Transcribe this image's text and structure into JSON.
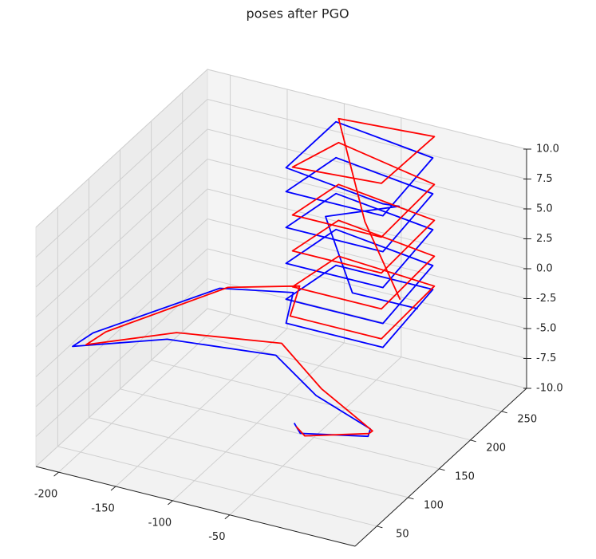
{
  "chart_data": {
    "type": "line3d",
    "title": "poses after PGO",
    "xlim": [
      -220,
      60
    ],
    "ylim": [
      15,
      290
    ],
    "zlim": [
      -10,
      10
    ],
    "xticks": [
      -200,
      -150,
      -100,
      -50
    ],
    "yticks": [
      50,
      100,
      150,
      200,
      250
    ],
    "zticks": [
      {
        "value": -10,
        "label": "-10.0"
      },
      {
        "value": -7.5,
        "label": "-7.5"
      },
      {
        "value": -5,
        "label": "-5.0"
      },
      {
        "value": -2.5,
        "label": "-2.5"
      },
      {
        "value": 0,
        "label": "0.0"
      },
      {
        "value": 2.5,
        "label": "2.5"
      },
      {
        "value": 5,
        "label": "5.0"
      },
      {
        "value": 7.5,
        "label": "7.5"
      },
      {
        "value": 10,
        "label": "10.0"
      }
    ],
    "grid": true,
    "series": [
      {
        "color": "#0000ff",
        "x": [
          -52,
          -40,
          9,
          5,
          -53,
          -102,
          -171,
          -213,
          -200,
          -155,
          -119,
          -110,
          -25,
          -25,
          -110,
          -110,
          -25,
          -25,
          -110,
          -110,
          -25,
          -25,
          -110,
          -110,
          -25,
          -25,
          -110,
          -110,
          -25,
          -25,
          -110,
          -110,
          -25,
          -30,
          -100,
          -60,
          -30
        ],
        "y": [
          122,
          110,
          129,
          140,
          159,
          184,
          136,
          61,
          70,
          191,
          243,
          215,
          215,
          295,
          295,
          215,
          215,
          295,
          295,
          215,
          215,
          295,
          295,
          215,
          215,
          295,
          295,
          215,
          215,
          295,
          295,
          215,
          215,
          250,
          260,
          230,
          280
        ],
        "z": [
          -7.5,
          -7.5,
          -7.5,
          -7.5,
          -7,
          -6,
          -4,
          -2,
          -1,
          -2,
          -4,
          -5,
          -5,
          -4,
          -4,
          -3,
          -3,
          -2,
          -1,
          0,
          0,
          1,
          2,
          3,
          3,
          4,
          5,
          6,
          6,
          7,
          8,
          8,
          7,
          5,
          2,
          -2,
          -5
        ]
      },
      {
        "color": "#ff0000",
        "x": [
          -48,
          -35,
          12,
          8,
          -50,
          -98,
          -165,
          -205,
          -192,
          -150,
          -115,
          -108,
          -28,
          -22,
          -106,
          -106,
          -28,
          -22,
          -106,
          -106,
          -28,
          -22,
          -106,
          -106,
          -28,
          -22,
          -106,
          -106,
          -28,
          -22,
          -106,
          -60,
          -40
        ],
        "y": [
          118,
          108,
          125,
          138,
          162,
          186,
          140,
          68,
          76,
          195,
          246,
          218,
          218,
          292,
          292,
          218,
          218,
          292,
          292,
          218,
          218,
          292,
          292,
          218,
          218,
          292,
          292,
          218,
          218,
          292,
          292,
          250,
          270
        ],
        "z": [
          -7.5,
          -7.5,
          -7,
          -7.5,
          -6.5,
          -5,
          -3.5,
          -2,
          -1,
          -2,
          -3.5,
          -4.5,
          -4.5,
          -3.5,
          -3,
          -2,
          -2,
          -1,
          0,
          1,
          1,
          2,
          3,
          4,
          4,
          5,
          6.5,
          8,
          8.5,
          9,
          8.5,
          3,
          -4
        ]
      }
    ]
  }
}
